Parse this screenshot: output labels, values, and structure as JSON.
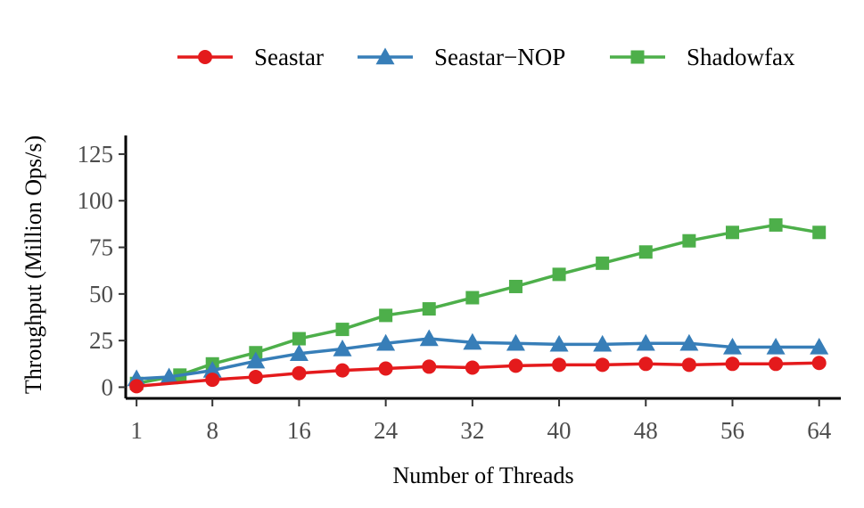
{
  "chart_data": {
    "type": "line",
    "title": "",
    "xlabel": "Number of Threads",
    "ylabel": "Throughput (Million Ops/s)",
    "xlim": [
      0,
      66
    ],
    "ylim": [
      -6,
      135
    ],
    "x_ticks": [
      1,
      8,
      16,
      24,
      32,
      40,
      48,
      56,
      64
    ],
    "y_ticks": [
      0,
      25,
      50,
      75,
      100,
      125
    ],
    "grid": false,
    "legend_position": "top",
    "series": [
      {
        "name": "Seastar",
        "color": "#e41a1c",
        "marker": "circle",
        "x": [
          1,
          8,
          12,
          16,
          20,
          24,
          28,
          32,
          36,
          40,
          44,
          48,
          52,
          56,
          60,
          64
        ],
        "y": [
          0.5,
          4,
          5.5,
          7.5,
          9,
          10,
          11,
          10.5,
          11.5,
          12,
          12,
          12.5,
          12,
          12.5,
          12.5,
          13
        ]
      },
      {
        "name": "Seastar−NOP",
        "color": "#377eb8",
        "marker": "triangle",
        "x": [
          1,
          4,
          8,
          12,
          16,
          20,
          24,
          28,
          32,
          36,
          40,
          44,
          48,
          52,
          56,
          60,
          64
        ],
        "y": [
          4.5,
          5.5,
          9,
          14,
          18,
          20.5,
          23.5,
          26,
          24,
          23.5,
          23,
          23,
          23.5,
          23.5,
          21.5,
          21.5,
          21.5
        ]
      },
      {
        "name": "Shadowfax",
        "color": "#4daf4a",
        "marker": "square",
        "x": [
          1,
          5,
          8,
          12,
          16,
          20,
          24,
          28,
          32,
          36,
          40,
          44,
          48,
          52,
          56,
          60,
          64
        ],
        "y": [
          2,
          6.5,
          12.5,
          18.5,
          26,
          31,
          38.5,
          42,
          48,
          54,
          60.5,
          66.5,
          72.5,
          78.5,
          83,
          87,
          83
        ]
      }
    ]
  }
}
